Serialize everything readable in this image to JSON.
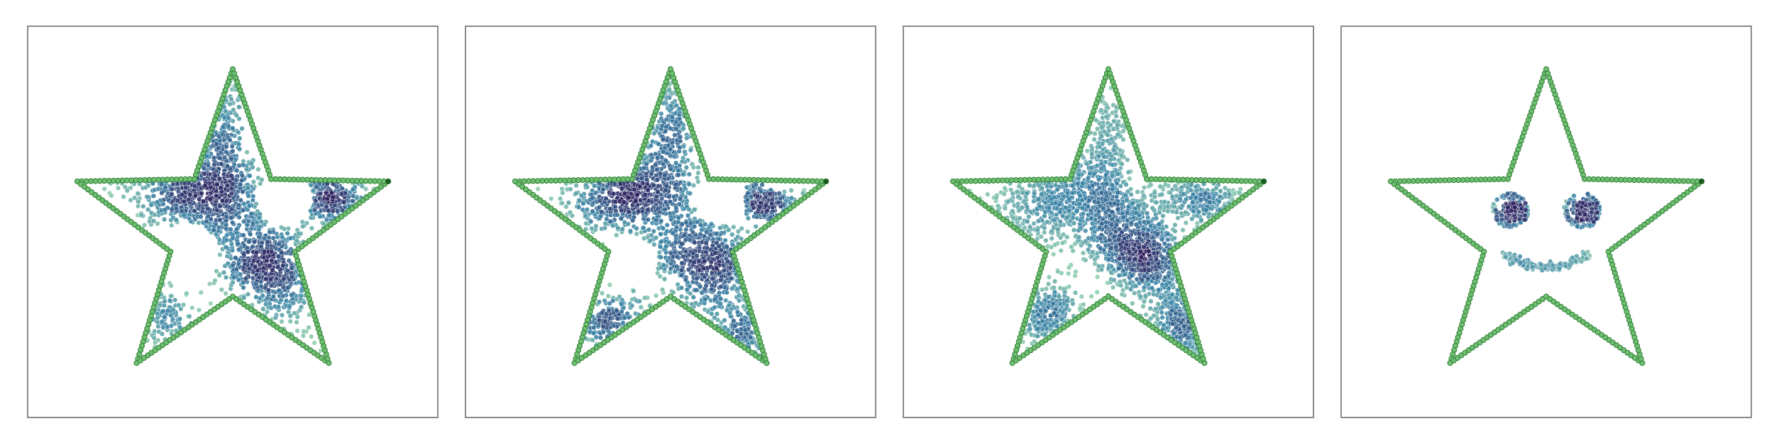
{
  "colors": {
    "boundary_fill": "#6fbf73",
    "boundary_edge": "#2e7d32",
    "endpoint": "#1b5e20",
    "density_low": "#9fdcb0",
    "density_mid": "#3a83a6",
    "density_high": "#2c1f5e",
    "frame": "#8a8a8a"
  },
  "chart_data": [
    {
      "type": "scatter",
      "boundary": "star",
      "grid": false,
      "xlim": [
        -1.25,
        1.25
      ],
      "ylim": [
        -1.2,
        1.2
      ],
      "clusters": [
        {
          "cx": -0.21,
          "cy": 0.21,
          "sx": 0.23,
          "sy": 0.14,
          "n": 700,
          "theta": -0.2
        },
        {
          "cx": 0.22,
          "cy": -0.28,
          "sx": 0.2,
          "sy": 0.16,
          "n": 650,
          "theta": -0.5
        },
        {
          "cx": -0.06,
          "cy": 0.58,
          "sx": 0.06,
          "sy": 0.18,
          "n": 180,
          "theta": 0.0
        },
        {
          "cx": 0.58,
          "cy": 0.14,
          "sx": 0.15,
          "sy": 0.07,
          "n": 240,
          "theta": -0.2
        },
        {
          "cx": -0.42,
          "cy": -0.58,
          "sx": 0.09,
          "sy": 0.09,
          "n": 100,
          "theta": 0.0
        }
      ],
      "holes": [
        {
          "cx": 0.32,
          "cy": 0.14,
          "r": 0.17
        },
        {
          "cx": -0.28,
          "cy": -0.2,
          "r": 0.2
        }
      ]
    },
    {
      "type": "scatter",
      "boundary": "star",
      "grid": false,
      "xlim": [
        -1.25,
        1.25
      ],
      "ylim": [
        -1.2,
        1.2
      ],
      "clusters": [
        {
          "cx": -0.22,
          "cy": 0.17,
          "sx": 0.24,
          "sy": 0.13,
          "n": 650,
          "theta": -0.15
        },
        {
          "cx": 0.22,
          "cy": -0.26,
          "sx": 0.19,
          "sy": 0.16,
          "n": 600,
          "theta": -0.6
        },
        {
          "cx": 0.0,
          "cy": 0.58,
          "sx": 0.07,
          "sy": 0.2,
          "n": 220,
          "theta": 0.0
        },
        {
          "cx": 0.6,
          "cy": 0.1,
          "sx": 0.14,
          "sy": 0.06,
          "n": 200,
          "theta": -0.2
        },
        {
          "cx": -0.4,
          "cy": -0.6,
          "sx": 0.12,
          "sy": 0.09,
          "n": 160,
          "theta": 0.3
        },
        {
          "cx": 0.45,
          "cy": -0.7,
          "sx": 0.1,
          "sy": 0.1,
          "n": 120,
          "theta": 0.0
        }
      ],
      "holes": [
        {
          "cx": 0.3,
          "cy": 0.14,
          "r": 0.16
        },
        {
          "cx": -0.25,
          "cy": -0.25,
          "r": 0.17
        }
      ]
    },
    {
      "type": "scatter",
      "boundary": "star",
      "grid": false,
      "xlim": [
        -1.25,
        1.25
      ],
      "ylim": [
        -1.2,
        1.2
      ],
      "clusters": [
        {
          "cx": 0.0,
          "cy": 0.08,
          "sx": 0.34,
          "sy": 0.13,
          "n": 900,
          "theta": -0.7
        },
        {
          "cx": 0.22,
          "cy": -0.24,
          "sx": 0.16,
          "sy": 0.1,
          "n": 500,
          "theta": -0.3
        },
        {
          "cx": -0.4,
          "cy": 0.05,
          "sx": 0.2,
          "sy": 0.12,
          "n": 300,
          "theta": -0.2
        },
        {
          "cx": 0.58,
          "cy": 0.13,
          "sx": 0.14,
          "sy": 0.07,
          "n": 220,
          "theta": -0.1
        },
        {
          "cx": -0.4,
          "cy": -0.58,
          "sx": 0.14,
          "sy": 0.1,
          "n": 250,
          "theta": 0.4
        },
        {
          "cx": 0.55,
          "cy": -0.62,
          "sx": 0.15,
          "sy": 0.12,
          "n": 280,
          "theta": 0.3
        },
        {
          "cx": 0.0,
          "cy": 0.55,
          "sx": 0.06,
          "sy": 0.16,
          "n": 140,
          "theta": 0.0
        }
      ],
      "holes": []
    },
    {
      "type": "scatter",
      "boundary": "star",
      "grid": false,
      "xlim": [
        -1.25,
        1.25
      ],
      "ylim": [
        -1.2,
        1.2
      ],
      "rings": [
        {
          "cx": -0.22,
          "cy": 0.07,
          "r": 0.1,
          "n": 60
        },
        {
          "cx": 0.22,
          "cy": 0.07,
          "r": 0.1,
          "n": 60
        }
      ],
      "clusters": [
        {
          "cx": -0.2,
          "cy": 0.07,
          "sx": 0.035,
          "sy": 0.035,
          "n": 160,
          "theta": 0.0
        },
        {
          "cx": 0.24,
          "cy": 0.07,
          "sx": 0.035,
          "sy": 0.035,
          "n": 160,
          "theta": 0.0
        }
      ],
      "smile": {
        "cx": 0.0,
        "cy": -0.2,
        "width": 0.26,
        "depth": 0.08,
        "n": 160
      },
      "holes": []
    }
  ]
}
